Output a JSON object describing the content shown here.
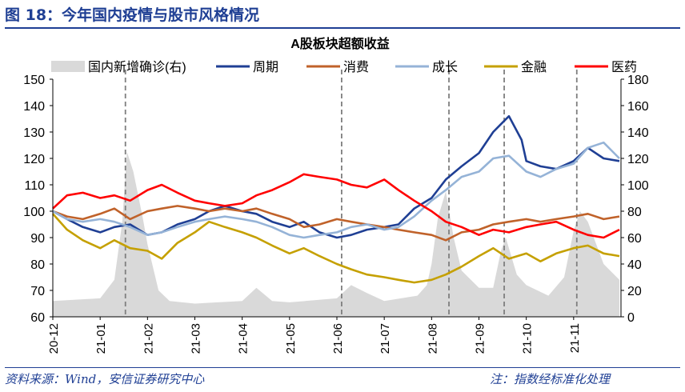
{
  "header": {
    "title": "图 18：今年国内疫情与股市风格情况"
  },
  "footer": {
    "source": "资料来源：Wind，安信证券研究中心",
    "note": "注：指数经标准化处理"
  },
  "colors": {
    "brand": "#1f3f94",
    "cases": "#d9d9d9",
    "cyclical": "#1f3f94",
    "consumer": "#c0622a",
    "growth": "#95b3d7",
    "financial": "#c5a000",
    "pharma": "#ff0000",
    "dashes": "#7f7f7f"
  },
  "chart_data": {
    "type": "line",
    "title": "A股板块超额收益",
    "x_ticks": [
      "20-12",
      "21-01",
      "21-02",
      "21-03",
      "21-04",
      "21-05",
      "21-06",
      "21-07",
      "21-08",
      "21-09",
      "21-10",
      "21-11"
    ],
    "ylim": [
      60,
      150
    ],
    "yticks": [
      60,
      70,
      80,
      90,
      100,
      110,
      120,
      130,
      140,
      150
    ],
    "y2lim": [
      0,
      180
    ],
    "y2ticks": [
      0,
      20,
      40,
      60,
      80,
      100,
      120,
      140,
      160,
      180
    ],
    "grid": false,
    "legend_position": "top",
    "area_series": {
      "name": "国内新增确诊(右)",
      "axis": "right",
      "points": [
        [
          "20-12",
          12
        ],
        [
          "21-01",
          14
        ],
        [
          "21-01-10",
          28
        ],
        [
          "21-01-15",
          72
        ],
        [
          "21-01-18",
          125
        ],
        [
          "21-01-22",
          110
        ],
        [
          "21-01-28",
          75
        ],
        [
          "21-02",
          55
        ],
        [
          "21-02-08",
          20
        ],
        [
          "21-02-15",
          12
        ],
        [
          "21-03",
          10
        ],
        [
          "21-04",
          12
        ],
        [
          "21-04-10",
          22
        ],
        [
          "21-04-20",
          12
        ],
        [
          "21-05",
          11
        ],
        [
          "21-06",
          14
        ],
        [
          "21-06-10",
          24
        ],
        [
          "21-06-20",
          18
        ],
        [
          "21-07",
          12
        ],
        [
          "21-07-22",
          16
        ],
        [
          "21-07-28",
          24
        ],
        [
          "21-08",
          40
        ],
        [
          "21-08-05",
          75
        ],
        [
          "21-08-10",
          95
        ],
        [
          "21-08-15",
          60
        ],
        [
          "21-08-20",
          35
        ],
        [
          "21-09",
          22
        ],
        [
          "21-09-10",
          22
        ],
        [
          "21-09-15",
          50
        ],
        [
          "21-09-18",
          60
        ],
        [
          "21-09-25",
          32
        ],
        [
          "21-10",
          24
        ],
        [
          "21-10-15",
          16
        ],
        [
          "21-10-25",
          30
        ],
        [
          "21-11",
          65
        ],
        [
          "21-11-05",
          80
        ],
        [
          "21-11-10",
          72
        ],
        [
          "21-11-20",
          40
        ],
        [
          "21-11-30",
          28
        ]
      ]
    },
    "series": [
      {
        "name": "周期",
        "axis": "left",
        "points": [
          [
            "20-12",
            100
          ],
          [
            "20-12-10",
            97
          ],
          [
            "20-12-20",
            94
          ],
          [
            "21-01",
            92
          ],
          [
            "21-01-10",
            94
          ],
          [
            "21-01-20",
            95
          ],
          [
            "21-02",
            91
          ],
          [
            "21-02-10",
            92
          ],
          [
            "21-02-20",
            95
          ],
          [
            "21-03",
            97
          ],
          [
            "21-03-10",
            100
          ],
          [
            "21-03-20",
            102
          ],
          [
            "21-04",
            100
          ],
          [
            "21-04-10",
            99
          ],
          [
            "21-04-20",
            96
          ],
          [
            "21-05",
            94
          ],
          [
            "21-05-10",
            96
          ],
          [
            "21-05-20",
            92
          ],
          [
            "21-06",
            90
          ],
          [
            "21-06-10",
            91
          ],
          [
            "21-06-20",
            93
          ],
          [
            "21-07",
            94
          ],
          [
            "21-07-10",
            95
          ],
          [
            "21-07-20",
            101
          ],
          [
            "21-08",
            105
          ],
          [
            "21-08-10",
            112
          ],
          [
            "21-08-20",
            117
          ],
          [
            "21-09",
            122
          ],
          [
            "21-09-10",
            130
          ],
          [
            "21-09-15",
            133
          ],
          [
            "21-09-20",
            136
          ],
          [
            "21-09-28",
            127
          ],
          [
            "21-10",
            119
          ],
          [
            "21-10-10",
            117
          ],
          [
            "21-10-20",
            116
          ],
          [
            "21-11",
            119
          ],
          [
            "21-11-10",
            124
          ],
          [
            "21-11-20",
            120
          ],
          [
            "21-11-30",
            119
          ]
        ]
      },
      {
        "name": "消费",
        "axis": "left",
        "points": [
          [
            "20-12",
            100
          ],
          [
            "20-12-10",
            98
          ],
          [
            "20-12-20",
            97
          ],
          [
            "21-01",
            99
          ],
          [
            "21-01-10",
            101
          ],
          [
            "21-01-20",
            97
          ],
          [
            "21-02",
            100
          ],
          [
            "21-02-10",
            101
          ],
          [
            "21-02-20",
            102
          ],
          [
            "21-03",
            101
          ],
          [
            "21-03-10",
            100
          ],
          [
            "21-03-20",
            101
          ],
          [
            "21-04",
            100
          ],
          [
            "21-04-10",
            101
          ],
          [
            "21-04-20",
            99
          ],
          [
            "21-05",
            97
          ],
          [
            "21-05-10",
            94
          ],
          [
            "21-05-20",
            95
          ],
          [
            "21-06",
            97
          ],
          [
            "21-06-10",
            96
          ],
          [
            "21-06-20",
            95
          ],
          [
            "21-07",
            94
          ],
          [
            "21-07-10",
            93
          ],
          [
            "21-07-20",
            92
          ],
          [
            "21-08",
            91
          ],
          [
            "21-08-10",
            89
          ],
          [
            "21-08-20",
            92
          ],
          [
            "21-09",
            93
          ],
          [
            "21-09-10",
            95
          ],
          [
            "21-09-20",
            96
          ],
          [
            "21-10",
            97
          ],
          [
            "21-10-10",
            96
          ],
          [
            "21-10-20",
            97
          ],
          [
            "21-11",
            98
          ],
          [
            "21-11-10",
            99
          ],
          [
            "21-11-20",
            97
          ],
          [
            "21-11-30",
            98
          ]
        ]
      },
      {
        "name": "成长",
        "axis": "left",
        "points": [
          [
            "20-12",
            100
          ],
          [
            "20-12-10",
            97
          ],
          [
            "20-12-20",
            96
          ],
          [
            "21-01",
            97
          ],
          [
            "21-01-10",
            96
          ],
          [
            "21-01-20",
            94
          ],
          [
            "21-02",
            91
          ],
          [
            "21-02-10",
            92
          ],
          [
            "21-02-20",
            94
          ],
          [
            "21-03",
            96
          ],
          [
            "21-03-10",
            97
          ],
          [
            "21-03-20",
            98
          ],
          [
            "21-04",
            97
          ],
          [
            "21-04-10",
            96
          ],
          [
            "21-04-20",
            94
          ],
          [
            "21-05",
            91
          ],
          [
            "21-05-10",
            90
          ],
          [
            "21-05-20",
            91
          ],
          [
            "21-06",
            92
          ],
          [
            "21-06-10",
            94
          ],
          [
            "21-06-20",
            95
          ],
          [
            "21-07",
            93
          ],
          [
            "21-07-10",
            94
          ],
          [
            "21-07-20",
            98
          ],
          [
            "21-08",
            104
          ],
          [
            "21-08-10",
            108
          ],
          [
            "21-08-20",
            113
          ],
          [
            "21-09",
            115
          ],
          [
            "21-09-10",
            120
          ],
          [
            "21-09-20",
            121
          ],
          [
            "21-10",
            115
          ],
          [
            "21-10-10",
            113
          ],
          [
            "21-10-20",
            116
          ],
          [
            "21-11",
            118
          ],
          [
            "21-11-10",
            124
          ],
          [
            "21-11-20",
            126
          ],
          [
            "21-11-30",
            120
          ]
        ]
      },
      {
        "name": "金融",
        "axis": "left",
        "points": [
          [
            "20-12",
            99
          ],
          [
            "20-12-10",
            93
          ],
          [
            "20-12-20",
            89
          ],
          [
            "21-01",
            86
          ],
          [
            "21-01-10",
            89
          ],
          [
            "21-01-20",
            86
          ],
          [
            "21-02",
            85
          ],
          [
            "21-02-10",
            82
          ],
          [
            "21-02-20",
            88
          ],
          [
            "21-03",
            92
          ],
          [
            "21-03-10",
            96
          ],
          [
            "21-03-20",
            94
          ],
          [
            "21-04",
            92
          ],
          [
            "21-04-10",
            90
          ],
          [
            "21-04-20",
            87
          ],
          [
            "21-05",
            84
          ],
          [
            "21-05-10",
            86
          ],
          [
            "21-05-20",
            83
          ],
          [
            "21-06",
            80
          ],
          [
            "21-06-10",
            78
          ],
          [
            "21-06-20",
            76
          ],
          [
            "21-07",
            75
          ],
          [
            "21-07-10",
            74
          ],
          [
            "21-07-20",
            73
          ],
          [
            "21-08",
            74
          ],
          [
            "21-08-10",
            76
          ],
          [
            "21-08-20",
            79
          ],
          [
            "21-09",
            83
          ],
          [
            "21-09-10",
            86
          ],
          [
            "21-09-20",
            82
          ],
          [
            "21-10",
            84
          ],
          [
            "21-10-10",
            81
          ],
          [
            "21-10-20",
            84
          ],
          [
            "21-11",
            86
          ],
          [
            "21-11-10",
            87
          ],
          [
            "21-11-20",
            84
          ],
          [
            "21-11-30",
            83
          ]
        ]
      },
      {
        "name": "医药",
        "axis": "left",
        "points": [
          [
            "20-12",
            101
          ],
          [
            "20-12-10",
            106
          ],
          [
            "20-12-20",
            107
          ],
          [
            "21-01",
            105
          ],
          [
            "21-01-10",
            106
          ],
          [
            "21-01-20",
            104
          ],
          [
            "21-02",
            108
          ],
          [
            "21-02-10",
            110
          ],
          [
            "21-02-20",
            107
          ],
          [
            "21-03",
            104
          ],
          [
            "21-03-10",
            103
          ],
          [
            "21-03-20",
            102
          ],
          [
            "21-04",
            103
          ],
          [
            "21-04-10",
            106
          ],
          [
            "21-04-20",
            108
          ],
          [
            "21-05",
            111
          ],
          [
            "21-05-10",
            114
          ],
          [
            "21-05-20",
            113
          ],
          [
            "21-06",
            112
          ],
          [
            "21-06-10",
            110
          ],
          [
            "21-06-20",
            109
          ],
          [
            "21-07",
            112
          ],
          [
            "21-07-10",
            108
          ],
          [
            "21-07-20",
            104
          ],
          [
            "21-08",
            100
          ],
          [
            "21-08-10",
            96
          ],
          [
            "21-08-20",
            94
          ],
          [
            "21-09",
            91
          ],
          [
            "21-09-10",
            93
          ],
          [
            "21-09-20",
            92
          ],
          [
            "21-10",
            94
          ],
          [
            "21-10-10",
            95
          ],
          [
            "21-10-20",
            96
          ],
          [
            "21-11",
            93
          ],
          [
            "21-11-10",
            91
          ],
          [
            "21-11-20",
            90
          ],
          [
            "21-11-30",
            93
          ]
        ]
      }
    ],
    "event_markers": [
      "21-01-17",
      "21-06-04",
      "21-08-12",
      "21-09-17",
      "21-11-03"
    ]
  }
}
